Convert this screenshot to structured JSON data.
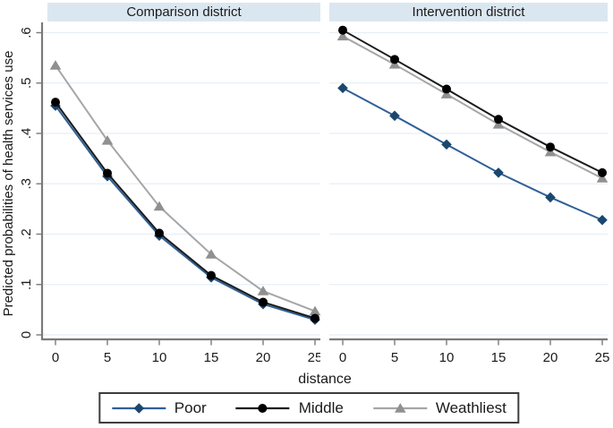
{
  "figure_title": "",
  "colors": {
    "band_bg": "#dbe7f0",
    "grid": "#e6eff7",
    "axis": "#7a7a7a",
    "tick_text": "#1a1a1a",
    "legend_border": "#3d3d3d",
    "poor_line": "#2f6096",
    "poor_marker": "#1a476f",
    "middle_line": "#1a1a1a",
    "middle_marker": "#000000",
    "wealthiest_line": "#a6a6a6",
    "wealthiest_marker": "#909090"
  },
  "chart_data": {
    "type": "line",
    "xlabel": "distance",
    "ylabel": "Predicted probabilities of health services use",
    "x": [
      0,
      5,
      10,
      15,
      20,
      25
    ],
    "xtick_labels": [
      "0",
      "5",
      "10",
      "15",
      "20",
      "25"
    ],
    "ylim": [
      0,
      0.6
    ],
    "yticks": [
      0,
      0.1,
      0.2,
      0.3,
      0.4,
      0.5,
      0.6
    ],
    "ytick_labels": [
      "0",
      ".1",
      ".2",
      ".3",
      ".4",
      ".5",
      ".6"
    ],
    "grid": true,
    "legend_position": "bottom-center",
    "legend": [
      "Poor",
      "Middle",
      "Weathliest"
    ],
    "series_styles": [
      {
        "name": "Poor",
        "marker": "diamond",
        "line_color": "#2f6096",
        "marker_color": "#1a476f"
      },
      {
        "name": "Middle",
        "marker": "circle",
        "line_color": "#1a1a1a",
        "marker_color": "#000000"
      },
      {
        "name": "Weathliest",
        "marker": "triangle",
        "line_color": "#a6a6a6",
        "marker_color": "#909090"
      }
    ],
    "panels": [
      {
        "title": "Comparison district",
        "series": [
          {
            "name": "Poor",
            "values": [
              0.455,
              0.315,
              0.197,
              0.114,
              0.061,
              0.03
            ]
          },
          {
            "name": "Middle",
            "values": [
              0.462,
              0.321,
              0.202,
              0.118,
              0.065,
              0.033
            ]
          },
          {
            "name": "Weathliest",
            "values": [
              0.535,
              0.386,
              0.255,
              0.16,
              0.087,
              0.047
            ]
          }
        ]
      },
      {
        "title": "Intervention district",
        "series": [
          {
            "name": "Poor",
            "values": [
              0.49,
              0.435,
              0.378,
              0.322,
              0.273,
              0.228
            ]
          },
          {
            "name": "Middle",
            "values": [
              0.605,
              0.547,
              0.488,
              0.428,
              0.373,
              0.322
            ]
          },
          {
            "name": "Weathliest",
            "values": [
              0.593,
              0.537,
              0.478,
              0.418,
              0.363,
              0.311
            ]
          }
        ]
      }
    ]
  }
}
